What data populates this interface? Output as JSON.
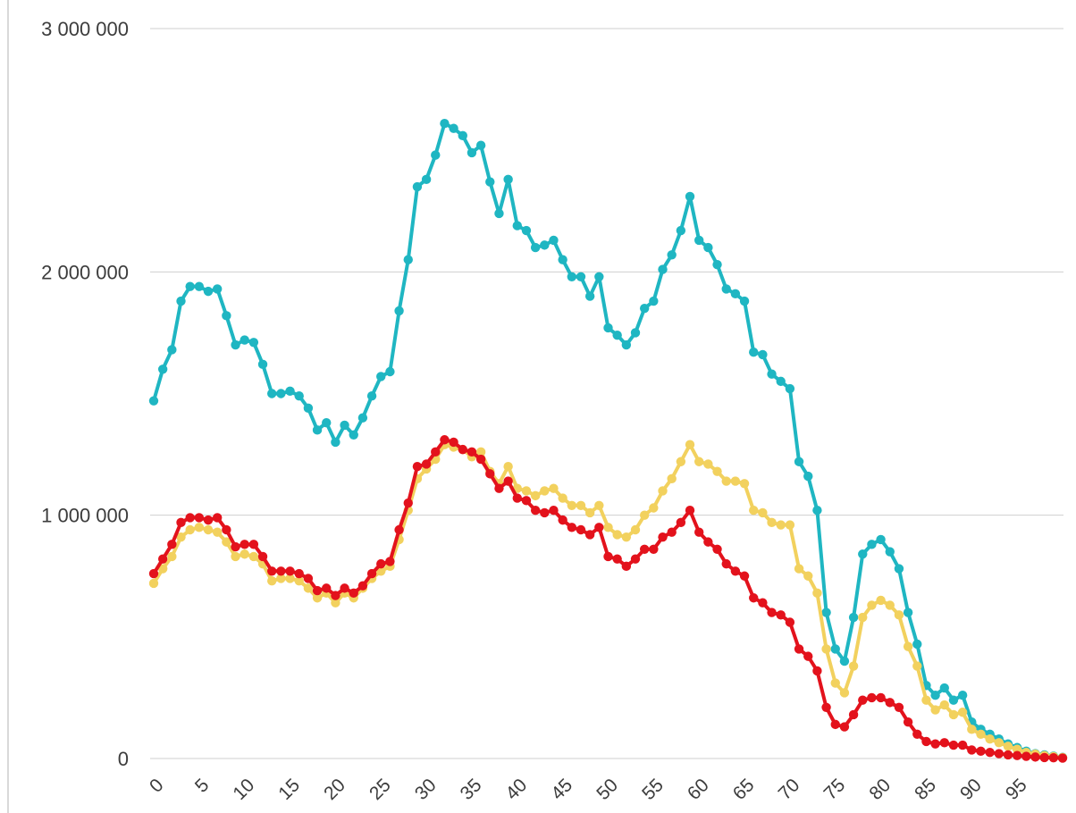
{
  "chart_data": {
    "type": "line",
    "title": "",
    "xlabel": "",
    "ylabel": "",
    "ylim": [
      0,
      3000000
    ],
    "xlim": [
      0,
      100
    ],
    "grid": true,
    "legend": "none",
    "y_ticks": [
      "0",
      "1 000 000",
      "2 000 000",
      "3 000 000"
    ],
    "y_tick_values": [
      0,
      1000000,
      2000000,
      3000000
    ],
    "x_ticks": [
      "0",
      "5",
      "10",
      "15",
      "20",
      "25",
      "30",
      "35",
      "40",
      "45",
      "50",
      "55",
      "60",
      "65",
      "70",
      "75",
      "80",
      "85",
      "90",
      "95"
    ],
    "x_tick_values": [
      0,
      5,
      10,
      15,
      20,
      25,
      30,
      35,
      40,
      45,
      50,
      55,
      60,
      65,
      70,
      75,
      80,
      85,
      90,
      95
    ],
    "x": [
      0,
      1,
      2,
      3,
      4,
      5,
      6,
      7,
      8,
      9,
      10,
      11,
      12,
      13,
      14,
      15,
      16,
      17,
      18,
      19,
      20,
      21,
      22,
      23,
      24,
      25,
      26,
      27,
      28,
      29,
      30,
      31,
      32,
      33,
      34,
      35,
      36,
      37,
      38,
      39,
      40,
      41,
      42,
      43,
      44,
      45,
      46,
      47,
      48,
      49,
      50,
      51,
      52,
      53,
      54,
      55,
      56,
      57,
      58,
      59,
      60,
      61,
      62,
      63,
      64,
      65,
      66,
      67,
      68,
      69,
      70,
      71,
      72,
      73,
      74,
      75,
      76,
      77,
      78,
      79,
      80,
      81,
      82,
      83,
      84,
      85,
      86,
      87,
      88,
      89,
      90,
      91,
      92,
      93,
      94,
      95,
      96,
      97,
      98,
      99,
      100
    ],
    "series": [
      {
        "color": "#1fb6c2",
        "values": [
          1470000,
          1600000,
          1680000,
          1880000,
          1940000,
          1940000,
          1920000,
          1930000,
          1820000,
          1700000,
          1720000,
          1710000,
          1620000,
          1500000,
          1500000,
          1510000,
          1490000,
          1440000,
          1350000,
          1380000,
          1300000,
          1370000,
          1330000,
          1400000,
          1490000,
          1570000,
          1590000,
          1840000,
          2050000,
          2350000,
          2380000,
          2480000,
          2610000,
          2590000,
          2560000,
          2490000,
          2520000,
          2370000,
          2240000,
          2380000,
          2190000,
          2170000,
          2100000,
          2110000,
          2130000,
          2050000,
          1980000,
          1980000,
          1900000,
          1980000,
          1770000,
          1740000,
          1700000,
          1750000,
          1850000,
          1880000,
          2010000,
          2070000,
          2170000,
          2310000,
          2130000,
          2100000,
          2030000,
          1930000,
          1910000,
          1880000,
          1670000,
          1660000,
          1580000,
          1550000,
          1520000,
          1220000,
          1160000,
          1020000,
          600000,
          450000,
          400000,
          580000,
          840000,
          880000,
          900000,
          850000,
          780000,
          600000,
          470000,
          300000,
          260000,
          290000,
          240000,
          260000,
          150000,
          120000,
          100000,
          80000,
          60000,
          45000,
          30000,
          20000,
          15000,
          10000,
          5000
        ]
      },
      {
        "color": "#f2d15e",
        "values": [
          720000,
          780000,
          830000,
          910000,
          940000,
          950000,
          940000,
          930000,
          890000,
          830000,
          840000,
          830000,
          800000,
          730000,
          740000,
          740000,
          730000,
          700000,
          660000,
          680000,
          640000,
          680000,
          660000,
          700000,
          740000,
          770000,
          790000,
          900000,
          1020000,
          1150000,
          1190000,
          1230000,
          1290000,
          1280000,
          1270000,
          1240000,
          1260000,
          1180000,
          1130000,
          1200000,
          1110000,
          1100000,
          1080000,
          1100000,
          1110000,
          1070000,
          1040000,
          1040000,
          1010000,
          1040000,
          950000,
          920000,
          910000,
          940000,
          1000000,
          1030000,
          1100000,
          1150000,
          1220000,
          1290000,
          1220000,
          1210000,
          1180000,
          1140000,
          1140000,
          1130000,
          1020000,
          1010000,
          970000,
          960000,
          960000,
          780000,
          750000,
          680000,
          450000,
          310000,
          270000,
          380000,
          580000,
          630000,
          650000,
          630000,
          590000,
          460000,
          380000,
          240000,
          200000,
          220000,
          180000,
          190000,
          120000,
          100000,
          80000,
          65000,
          50000,
          38000,
          25000,
          18000,
          12000,
          8000,
          4000
        ]
      },
      {
        "color": "#e3121c",
        "values": [
          760000,
          820000,
          880000,
          970000,
          990000,
          990000,
          980000,
          990000,
          940000,
          870000,
          880000,
          880000,
          830000,
          770000,
          770000,
          770000,
          760000,
          740000,
          690000,
          700000,
          670000,
          700000,
          680000,
          710000,
          760000,
          800000,
          810000,
          940000,
          1050000,
          1200000,
          1210000,
          1260000,
          1310000,
          1300000,
          1270000,
          1260000,
          1230000,
          1170000,
          1110000,
          1140000,
          1070000,
          1060000,
          1020000,
          1010000,
          1020000,
          980000,
          950000,
          940000,
          920000,
          950000,
          830000,
          820000,
          790000,
          820000,
          860000,
          860000,
          910000,
          930000,
          970000,
          1020000,
          930000,
          890000,
          860000,
          800000,
          770000,
          750000,
          660000,
          640000,
          600000,
          590000,
          560000,
          450000,
          420000,
          360000,
          210000,
          140000,
          130000,
          180000,
          240000,
          250000,
          250000,
          230000,
          210000,
          150000,
          100000,
          70000,
          60000,
          65000,
          55000,
          55000,
          35000,
          30000,
          25000,
          20000,
          15000,
          12000,
          9000,
          6000,
          4000,
          3000,
          1500
        ]
      }
    ]
  }
}
